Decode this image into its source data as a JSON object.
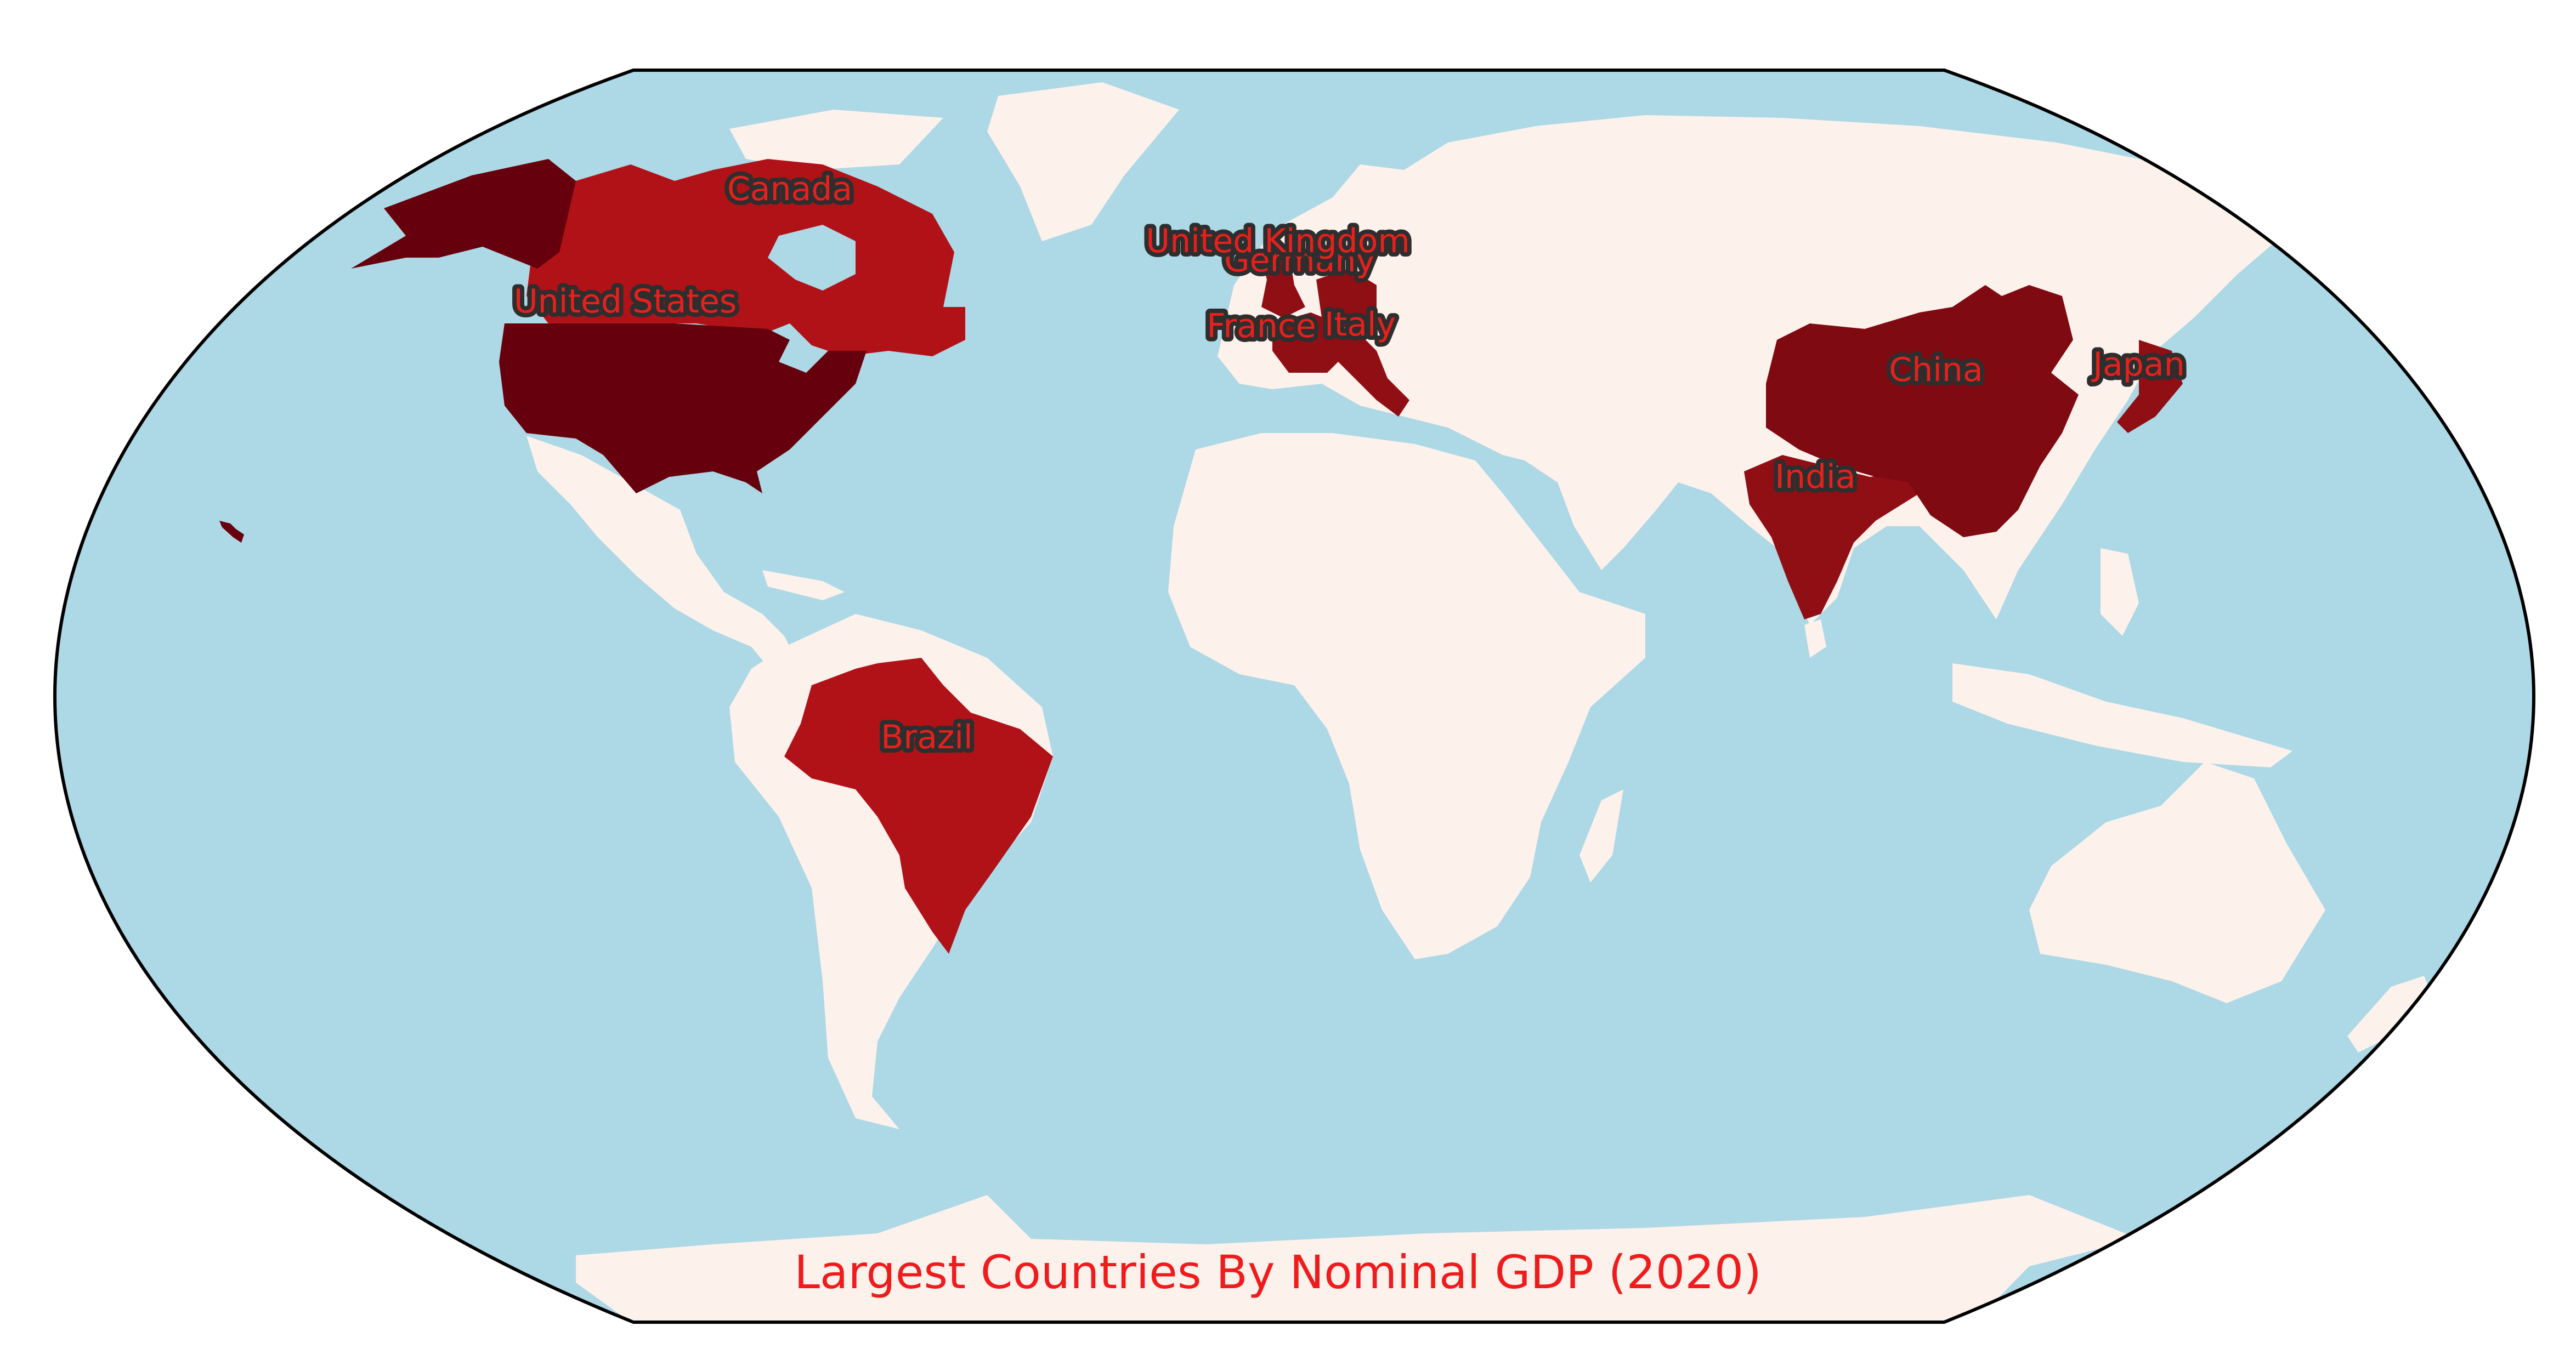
{
  "title": "Largest Countries By Nominal GDP (2020)",
  "colors": {
    "ocean": "#add8e6",
    "land": "#fdf1ec",
    "border": "#000000",
    "tier_darkest": "#67000d",
    "tier_dark": "#7f0a12",
    "tier_mid": "#8f0f15",
    "tier_light": "#b01217",
    "label_text": "#e8201c",
    "label_halo": "#2e2e2e",
    "title": "#ee1c1c"
  },
  "projection": "Robinson",
  "countries": [
    {
      "name": "United States",
      "tier": "tier_darkest"
    },
    {
      "name": "China",
      "tier": "tier_dark"
    },
    {
      "name": "Japan",
      "tier": "tier_mid"
    },
    {
      "name": "Germany",
      "tier": "tier_mid"
    },
    {
      "name": "United Kingdom",
      "tier": "tier_mid"
    },
    {
      "name": "India",
      "tier": "tier_mid"
    },
    {
      "name": "France",
      "tier": "tier_mid"
    },
    {
      "name": "Italy",
      "tier": "tier_mid"
    },
    {
      "name": "Canada",
      "tier": "tier_light"
    },
    {
      "name": "Brazil",
      "tier": "tier_light"
    }
  ]
}
